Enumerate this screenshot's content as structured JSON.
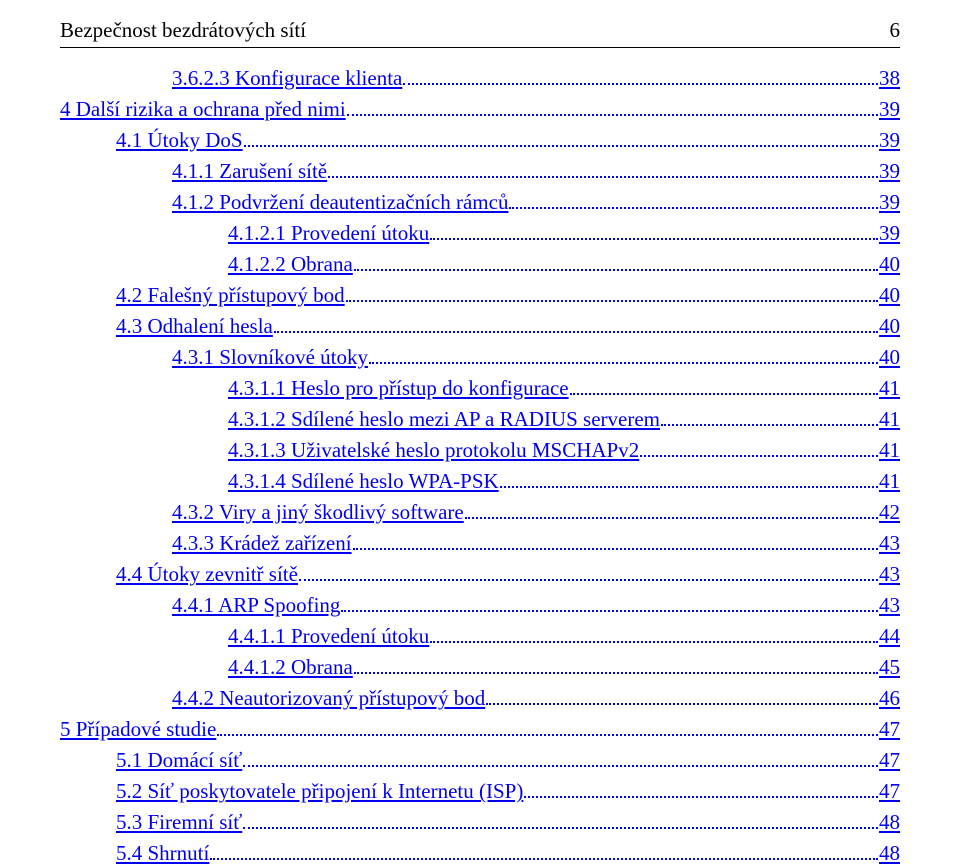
{
  "header": {
    "title": "Bezpečnost bezdrátových sítí",
    "page_number": "6"
  },
  "link_color": "#0000ee",
  "text_color": "#000000",
  "background_color": "#ffffff",
  "font_family": "Times New Roman",
  "font_size_pt": 16,
  "toc": [
    {
      "level": 2,
      "label": "3.6.2.3 Konfigurace klienta",
      "page": "38"
    },
    {
      "level": 0,
      "label": "4 Další rizika a ochrana před nimi",
      "page": "39"
    },
    {
      "level": 1,
      "label": "4.1 Útoky DoS",
      "page": "39"
    },
    {
      "level": 2,
      "label": "4.1.1 Zarušení sítě",
      "page": "39"
    },
    {
      "level": 2,
      "label": "4.1.2 Podvržení deautentizačních rámců",
      "page": "39"
    },
    {
      "level": 3,
      "label": "4.1.2.1 Provedení útoku",
      "page": "39"
    },
    {
      "level": 3,
      "label": "4.1.2.2 Obrana",
      "page": "40"
    },
    {
      "level": 1,
      "label": "4.2 Falešný přístupový bod",
      "page": "40"
    },
    {
      "level": 1,
      "label": "4.3 Odhalení hesla",
      "page": "40"
    },
    {
      "level": 2,
      "label": "4.3.1 Slovníkové útoky",
      "page": "40"
    },
    {
      "level": 3,
      "label": "4.3.1.1 Heslo pro přístup do konfigurace",
      "page": "41"
    },
    {
      "level": 3,
      "label": "4.3.1.2 Sdílené heslo mezi AP a RADIUS serverem",
      "page": "41"
    },
    {
      "level": 3,
      "label": "4.3.1.3 Uživatelské heslo protokolu MSCHAPv2",
      "page": "41"
    },
    {
      "level": 3,
      "label": "4.3.1.4 Sdílené heslo WPA-PSK",
      "page": "41"
    },
    {
      "level": 2,
      "label": "4.3.2 Viry a jiný škodlivý software",
      "page": "42"
    },
    {
      "level": 2,
      "label": "4.3.3 Krádež zařízení",
      "page": "43"
    },
    {
      "level": 1,
      "label": "4.4 Útoky zevnitř sítě",
      "page": "43"
    },
    {
      "level": 2,
      "label": "4.4.1 ARP Spoofing",
      "page": "43"
    },
    {
      "level": 3,
      "label": "4.4.1.1 Provedení útoku",
      "page": "44"
    },
    {
      "level": 3,
      "label": "4.4.1.2 Obrana",
      "page": "45"
    },
    {
      "level": 2,
      "label": "4.4.2 Neautorizovaný přístupový bod",
      "page": "46"
    },
    {
      "level": 0,
      "label": "5 Případové studie",
      "page": "47"
    },
    {
      "level": 1,
      "label": "5.1 Domácí síť",
      "page": "47"
    },
    {
      "level": 1,
      "label": "5.2 Síť poskytovatele připojení k Internetu (ISP)",
      "page": "47"
    },
    {
      "level": 1,
      "label": "5.3 Firemní síť",
      "page": "48"
    },
    {
      "level": 1,
      "label": "5.4 Shrnutí",
      "page": "48"
    }
  ]
}
